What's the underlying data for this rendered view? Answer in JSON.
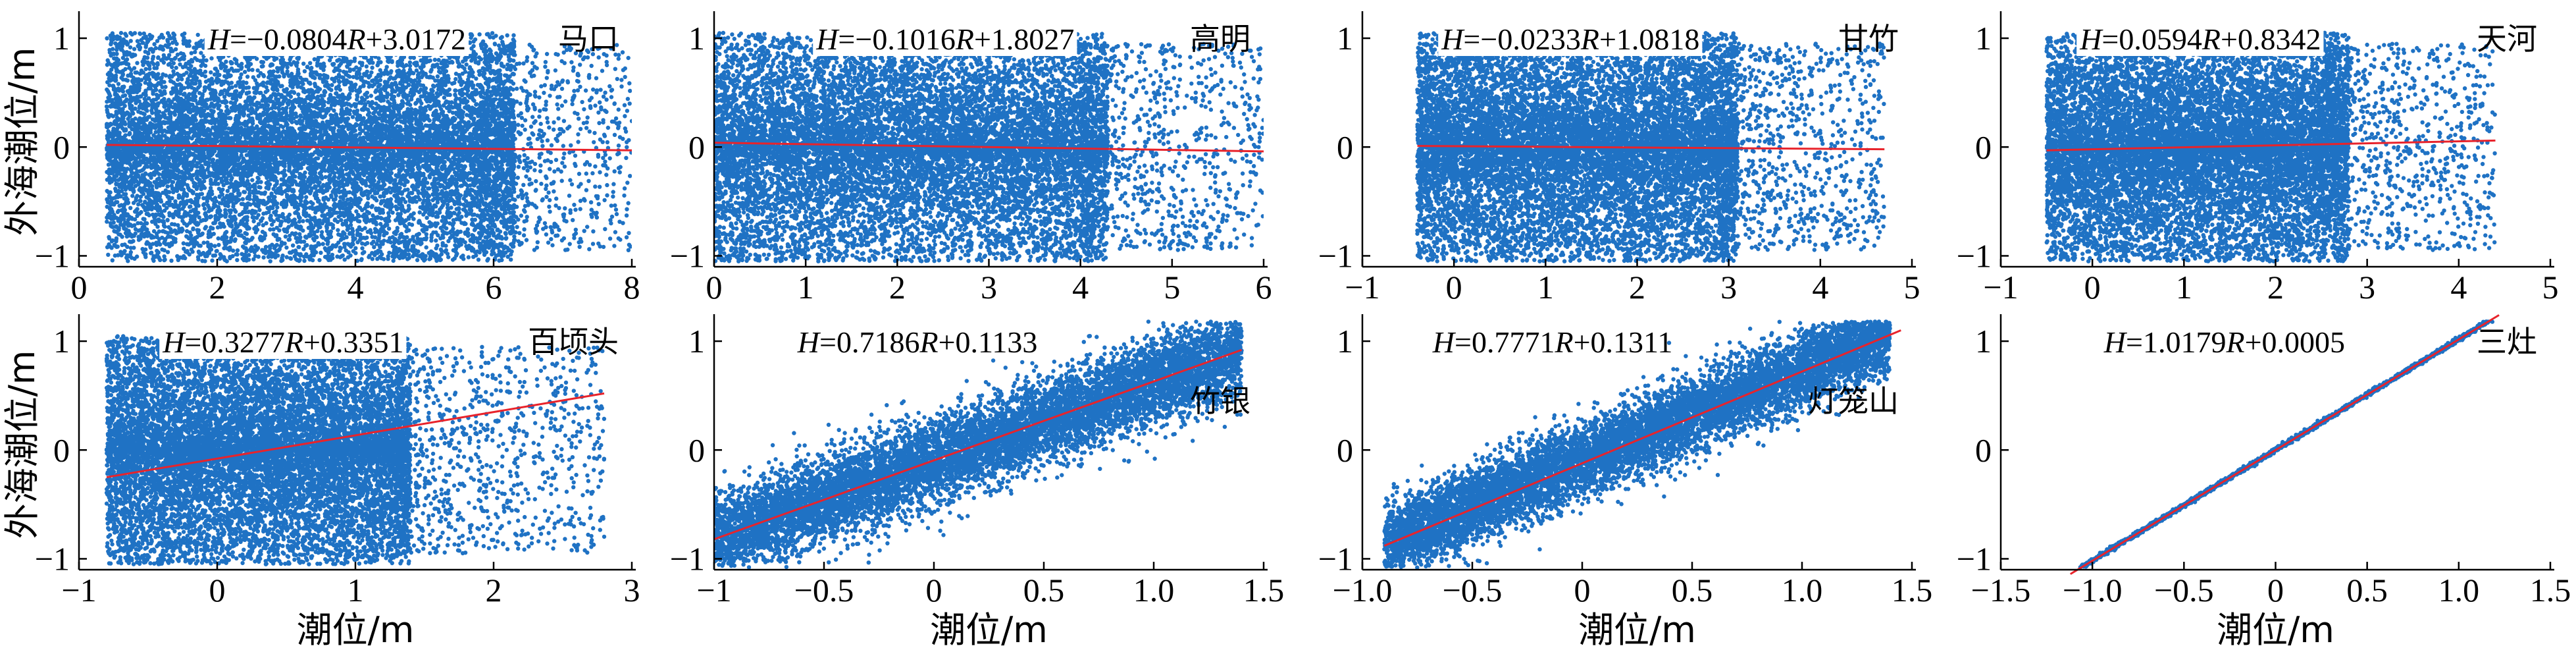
{
  "chart_data": [
    {
      "type": "scatter",
      "station": "马口",
      "equation": {
        "slope": "-0.0804",
        "intercept": "3.0172"
      },
      "xlim": [
        0,
        8
      ],
      "ylim": [
        -1.1,
        1.2
      ],
      "xticks": [
        "0",
        "2",
        "4",
        "6",
        "8"
      ],
      "yticks": [
        "1",
        "0",
        "-1"
      ],
      "x_dense": [
        0.4,
        6.3
      ],
      "x_sparse": [
        5.8,
        8.0
      ],
      "y_spread": 1.0,
      "fit_line": {
        "x": [
          0.4,
          8.0
        ],
        "y": [
          0.02,
          -0.03
        ]
      },
      "trend": null
    },
    {
      "type": "scatter",
      "station": "高明",
      "equation": {
        "slope": "-0.1016",
        "intercept": "1.8027"
      },
      "xlim": [
        0,
        6
      ],
      "ylim": [
        -1.1,
        1.2
      ],
      "xticks": [
        "0",
        "1",
        "2",
        "3",
        "4",
        "5",
        "6"
      ],
      "yticks": [
        "1",
        "0",
        "-1"
      ],
      "x_dense": [
        0.0,
        4.3
      ],
      "x_sparse": [
        4.0,
        6.0
      ],
      "y_spread": 1.0,
      "fit_line": {
        "x": [
          0.0,
          6.0
        ],
        "y": [
          0.04,
          -0.04
        ]
      },
      "trend": null
    },
    {
      "type": "scatter",
      "station": "甘竹",
      "equation": {
        "slope": "-0.0233",
        "intercept": "1.0818"
      },
      "xlim": [
        -1,
        5
      ],
      "ylim": [
        -1.1,
        1.2
      ],
      "xticks": [
        "-1",
        "0",
        "1",
        "2",
        "3",
        "4",
        "5"
      ],
      "yticks": [
        "1",
        "0",
        "-1"
      ],
      "x_dense": [
        -0.4,
        3.1
      ],
      "x_sparse": [
        2.9,
        4.7
      ],
      "y_spread": 1.0,
      "fit_line": {
        "x": [
          -0.4,
          4.7
        ],
        "y": [
          0.01,
          -0.02
        ]
      },
      "trend": null
    },
    {
      "type": "scatter",
      "station": "天河",
      "equation": {
        "slope": "0.0594",
        "intercept": "0.8342"
      },
      "xlim": [
        -1,
        5
      ],
      "ylim": [
        -1.1,
        1.2
      ],
      "xticks": [
        "-1",
        "0",
        "1",
        "2",
        "3",
        "4",
        "5"
      ],
      "yticks": [
        "1",
        "0",
        "-1"
      ],
      "x_dense": [
        -0.5,
        2.8
      ],
      "x_sparse": [
        2.5,
        4.4
      ],
      "y_spread": 1.0,
      "fit_line": {
        "x": [
          -0.5,
          4.4
        ],
        "y": [
          -0.03,
          0.06
        ]
      },
      "trend": null
    },
    {
      "type": "scatter",
      "station": "百顷头",
      "equation": {
        "slope": "0.3277",
        "intercept": "0.3351"
      },
      "xlim": [
        -1,
        3
      ],
      "ylim": [
        -1.1,
        1.2
      ],
      "xticks": [
        "-1",
        "0",
        "1",
        "2",
        "3"
      ],
      "yticks": [
        "1",
        "0",
        "-1"
      ],
      "x_dense": [
        -0.8,
        1.4
      ],
      "x_sparse": [
        1.3,
        2.8
      ],
      "y_spread": 1.0,
      "fit_line": {
        "x": [
          -0.8,
          2.8
        ],
        "y": [
          -0.25,
          0.52
        ]
      },
      "trend": null
    },
    {
      "type": "scatter",
      "station": "竹银",
      "equation": {
        "slope": "0.7186",
        "intercept": "0.1133"
      },
      "xlim": [
        -1,
        1.5
      ],
      "ylim": [
        -1.1,
        1.2
      ],
      "xticks": [
        "-1",
        "-0.5",
        "0",
        "0.5",
        "1.0",
        "1.5"
      ],
      "yticks": [
        "1",
        "0",
        "-1"
      ],
      "x_dense": [
        -1.0,
        1.4
      ],
      "x_sparse": null,
      "y_spread": 0.4,
      "fit_line": {
        "x": [
          -1.0,
          1.4
        ],
        "y": [
          -0.82,
          0.92
        ]
      },
      "trend": {
        "slope": 0.72,
        "intercept": -0.1
      }
    },
    {
      "type": "scatter",
      "station": "灯笼山",
      "equation": {
        "slope": "0.7771",
        "intercept": "0.1311"
      },
      "xlim": [
        -1,
        1.5
      ],
      "ylim": [
        -1.1,
        1.2
      ],
      "xticks": [
        "-1.0",
        "-0.5",
        "0",
        "0.5",
        "1.0",
        "1.5"
      ],
      "yticks": [
        "1",
        "0",
        "-1"
      ],
      "x_dense": [
        -0.9,
        1.4
      ],
      "x_sparse": null,
      "y_spread": 0.35,
      "fit_line": {
        "x": [
          -0.9,
          1.45
        ],
        "y": [
          -0.88,
          1.1
        ]
      },
      "trend": {
        "slope": 0.84,
        "intercept": -0.1
      }
    },
    {
      "type": "scatter",
      "station": "三灶",
      "equation": {
        "slope": "1.0179",
        "intercept": "0.0005"
      },
      "xlim": [
        -1.5,
        1.5
      ],
      "ylim": [
        -1.1,
        1.2
      ],
      "xticks": [
        "-1.5",
        "-1.0",
        "-0.5",
        "0",
        "0.5",
        "1.0",
        "1.5"
      ],
      "yticks": [
        "1",
        "0",
        "-1"
      ],
      "x_dense": [
        -1.12,
        1.22
      ],
      "x_sparse": null,
      "y_spread": 0.02,
      "fit_line": {
        "x": [
          -1.12,
          1.22
        ],
        "y": [
          -1.14,
          1.24
        ]
      },
      "trend": {
        "slope": 1.0179,
        "intercept": 0.0005
      }
    }
  ],
  "labels": {
    "ylabel": "外海潮位/m",
    "xlabel": "潮位/m",
    "eq_var_h": "H",
    "eq_var_r": "R",
    "eq_equals": "=",
    "eq_plus": "+"
  },
  "colors": {
    "points": "#1f72c4",
    "fit": "#e8232b",
    "axis": "#000000"
  }
}
